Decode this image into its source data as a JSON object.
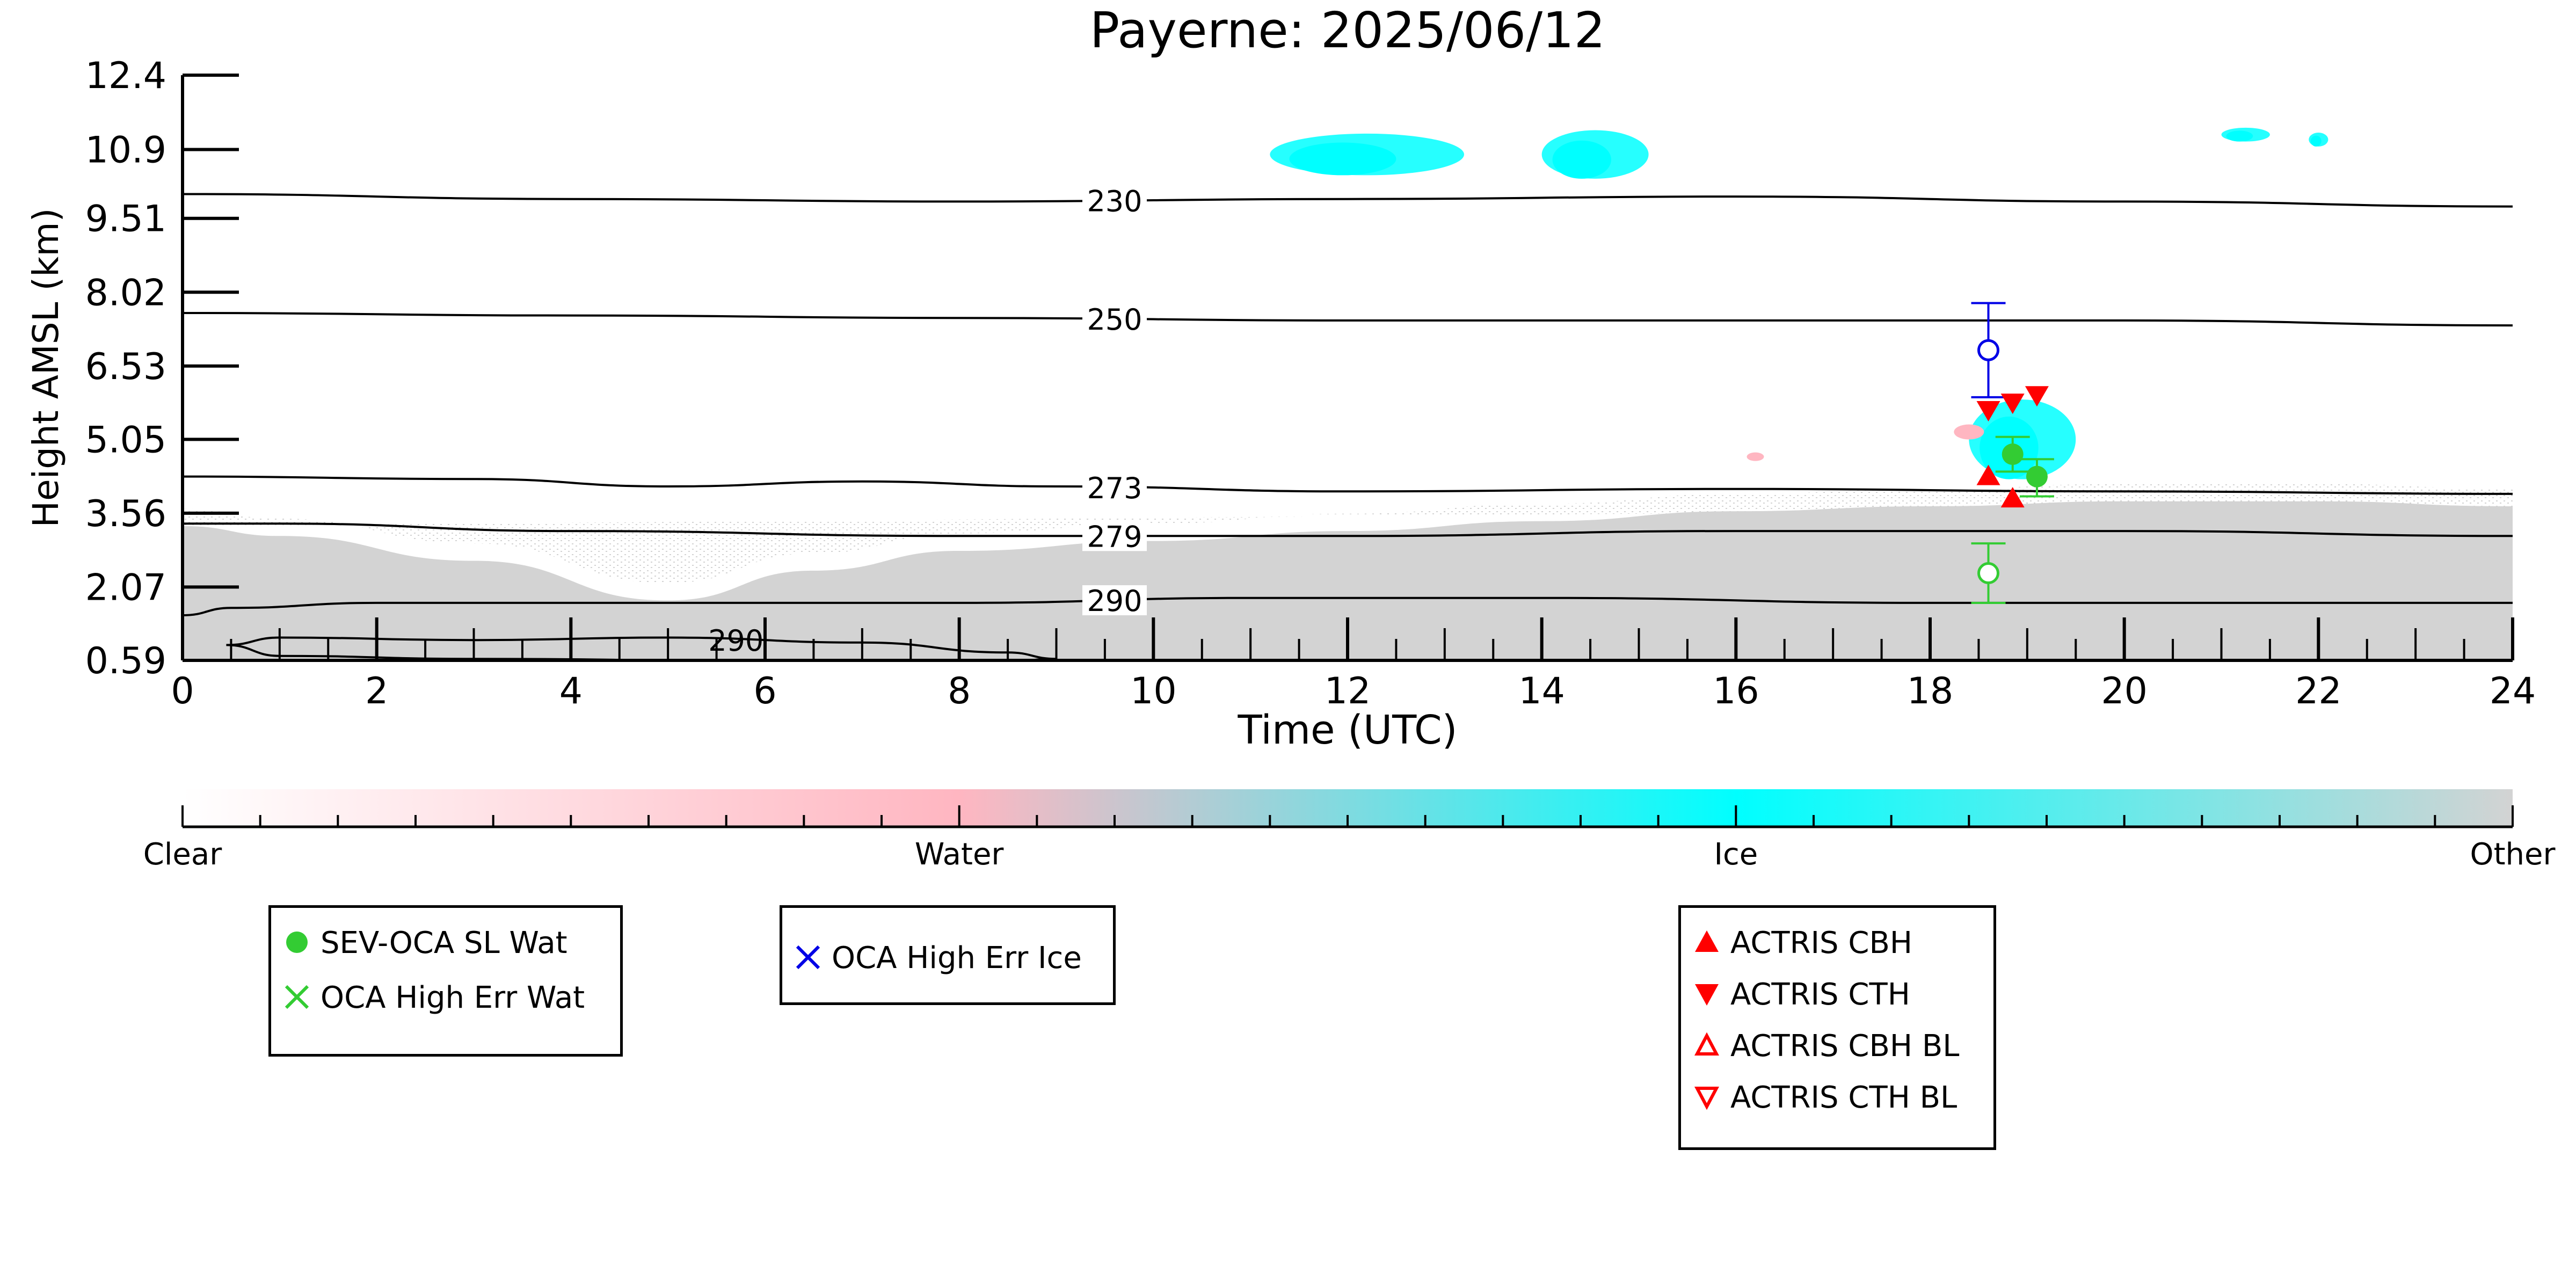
{
  "chart_data": {
    "type": "scatter",
    "title": "Payerne: 2025/06/12",
    "xlabel": "Time (UTC)",
    "ylabel": "Height AMSL (km)",
    "xlim": [
      0,
      24
    ],
    "ylim": [
      0.59,
      12.4
    ],
    "x_ticks": [
      "0",
      "2",
      "4",
      "6",
      "8",
      "10",
      "12",
      "14",
      "16",
      "18",
      "20",
      "22",
      "24"
    ],
    "y_ticks": [
      "0.59",
      "2.07",
      "3.56",
      "5.05",
      "6.53",
      "8.02",
      "9.51",
      "10.9",
      "12.4"
    ],
    "y_tick_values": [
      0.59,
      2.07,
      3.56,
      5.05,
      6.53,
      8.02,
      9.51,
      10.9,
      12.4
    ],
    "background_classification": {
      "description_layers": [
        "Clear",
        "Water",
        "Ice",
        "Other"
      ],
      "other_layer_top_km": [
        [
          0,
          3.3
        ],
        [
          1,
          3.1
        ],
        [
          3,
          2.6
        ],
        [
          5,
          1.8
        ],
        [
          6.5,
          2.4
        ],
        [
          8,
          2.8
        ],
        [
          10,
          3.0
        ],
        [
          12,
          3.2
        ],
        [
          14,
          3.4
        ],
        [
          16,
          3.6
        ],
        [
          18,
          3.7
        ],
        [
          20,
          3.8
        ],
        [
          22,
          3.8
        ],
        [
          24,
          3.7
        ]
      ],
      "ice_patches": [
        {
          "x_range": [
            11.2,
            13.2
          ],
          "y_range": [
            10.2,
            11.4
          ]
        },
        {
          "x_range": [
            14.0,
            15.1
          ],
          "y_range": [
            10.1,
            11.5
          ]
        },
        {
          "x_range": [
            18.4,
            19.5
          ],
          "y_range": [
            3.9,
            6.2
          ]
        },
        {
          "x_range": [
            21.0,
            21.5
          ],
          "y_range": [
            11.0,
            11.4
          ]
        },
        {
          "x_range": [
            21.9,
            22.1
          ],
          "y_range": [
            10.9,
            11.3
          ]
        }
      ]
    },
    "isotherms": [
      {
        "label": "230",
        "label_x": 9.6,
        "x": [
          0,
          4,
          8,
          12,
          16,
          20,
          24
        ],
        "y": [
          10.0,
          9.9,
          9.85,
          9.9,
          9.95,
          9.85,
          9.75
        ]
      },
      {
        "label": "250",
        "label_x": 9.6,
        "x": [
          0,
          4,
          8,
          12,
          16,
          20,
          24
        ],
        "y": [
          7.6,
          7.55,
          7.5,
          7.45,
          7.45,
          7.45,
          7.35
        ]
      },
      {
        "label": "273",
        "label_x": 9.6,
        "x": [
          0,
          3,
          5,
          7,
          9,
          12,
          16,
          20,
          24
        ],
        "y": [
          4.3,
          4.25,
          4.1,
          4.2,
          4.1,
          4.0,
          4.05,
          4.0,
          3.95
        ]
      },
      {
        "label": "279",
        "label_x": 9.6,
        "x": [
          0,
          1,
          4,
          8,
          12,
          16,
          20,
          24
        ],
        "y": [
          3.35,
          3.35,
          3.2,
          3.1,
          3.1,
          3.2,
          3.2,
          3.1
        ]
      },
      {
        "label": "290",
        "label_x": 9.6,
        "x": [
          0,
          0.5,
          2,
          5,
          8,
          11,
          14,
          18,
          22,
          24
        ],
        "y": [
          1.5,
          1.65,
          1.75,
          1.75,
          1.75,
          1.85,
          1.85,
          1.75,
          1.75,
          1.75
        ]
      }
    ],
    "isotherm_loop": {
      "label": "290",
      "label_x": 5.7,
      "x": [
        0.45,
        1,
        3,
        5,
        7,
        8.5,
        9.0,
        8.4,
        6,
        3,
        1,
        0.45
      ],
      "y": [
        0.9,
        1.05,
        1.0,
        1.05,
        0.95,
        0.75,
        0.62,
        0.55,
        0.58,
        0.62,
        0.68,
        0.9
      ]
    },
    "series": [
      {
        "name": "SEV-OCA SL Wat",
        "marker": "filled-circle",
        "color": "#33cc33",
        "x": [
          18.85,
          19.1
        ],
        "y": [
          4.75,
          4.3
        ],
        "yerr_low": [
          0.35,
          0.4
        ],
        "yerr_high": [
          0.35,
          0.35
        ]
      },
      {
        "name": "OCA High Err Wat",
        "marker": "x",
        "color": "#33cc33",
        "x": [
          18.6
        ],
        "y": [
          2.35
        ],
        "yerr_low": [
          0.6
        ],
        "yerr_high": [
          0.6
        ],
        "plotted_as": "open-circle"
      },
      {
        "name": "OCA High Err Ice",
        "marker": "x",
        "color": "#0000e6",
        "x": [
          18.6
        ],
        "y": [
          6.85
        ],
        "yerr_low": [
          0.95
        ],
        "yerr_high": [
          0.95
        ],
        "plotted_as": "open-circle"
      },
      {
        "name": "ACTRIS CBH",
        "marker": "triangle-up",
        "color": "#ff0000",
        "x": [
          18.6,
          18.85
        ],
        "y": [
          4.3,
          3.85
        ]
      },
      {
        "name": "ACTRIS CTH",
        "marker": "triangle-down",
        "color": "#ff0000",
        "x": [
          18.6,
          18.85,
          19.1
        ],
        "y": [
          5.65,
          5.8,
          5.95
        ]
      },
      {
        "name": "ACTRIS CBH BL",
        "marker": "open-triangle-up",
        "color": "#ff0000",
        "x": [],
        "y": []
      },
      {
        "name": "ACTRIS CTH BL",
        "marker": "open-triangle-down",
        "color": "#ff0000",
        "x": [],
        "y": []
      }
    ],
    "colorbar": {
      "labels": [
        "Clear",
        "Water",
        "Ice",
        "Other"
      ],
      "label_positions": [
        0,
        1,
        2,
        3
      ],
      "colors": [
        "#ffffff",
        "#ffb6c1",
        "#00ffff",
        "#d3d3d3"
      ]
    },
    "legend_groups": [
      [
        "SEV-OCA SL Wat",
        "OCA High Err Wat"
      ],
      [
        "OCA High Err Ice"
      ],
      [
        "ACTRIS CBH",
        "ACTRIS CTH",
        "ACTRIS CBH BL",
        "ACTRIS CTH BL"
      ]
    ],
    "legend_placement": "below-plot",
    "grid": false
  }
}
